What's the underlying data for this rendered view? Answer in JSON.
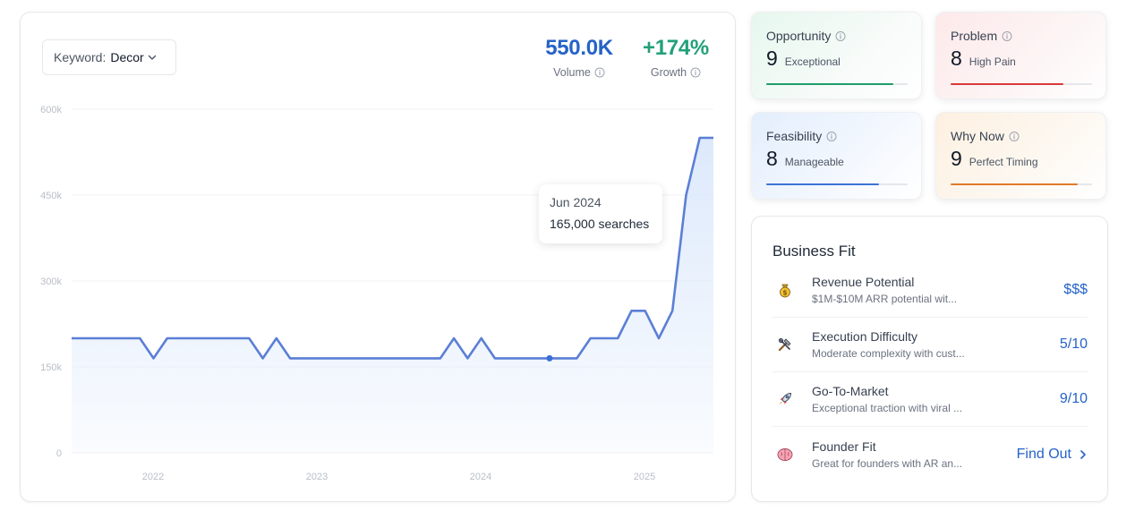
{
  "keyword": {
    "label": "Keyword:",
    "value": "Decor"
  },
  "metrics": {
    "volume": {
      "value": "550.0K",
      "label": "Volume",
      "color": "#2563c8"
    },
    "growth": {
      "value": "+174%",
      "label": "Growth",
      "color": "#22a07a"
    }
  },
  "tooltip": {
    "date": "Jun 2024",
    "value": "165,000 searches"
  },
  "chart_data": {
    "type": "area",
    "x_ticks": [
      "2022",
      "2023",
      "2024",
      "2025"
    ],
    "y_ticks": [
      "0",
      "150k",
      "300k",
      "450k",
      "600k"
    ],
    "ylim": [
      0,
      600000
    ],
    "grid": true,
    "line_color": "#5b7fd6",
    "fill_color": "#dbe8fb",
    "series": [
      {
        "values": [
          200000,
          200000,
          200000,
          200000,
          200000,
          200000,
          165000,
          200000,
          200000,
          200000,
          200000,
          200000,
          200000,
          200000,
          165000,
          200000,
          165000,
          165000,
          165000,
          165000,
          165000,
          165000,
          165000,
          165000,
          165000,
          165000,
          165000,
          165000,
          200000,
          165000,
          200000,
          165000,
          165000,
          165000,
          165000,
          165000,
          165000,
          165000,
          200000,
          200000,
          200000,
          248000,
          248000,
          200000,
          248000,
          450000,
          550000,
          550000
        ]
      }
    ],
    "highlight_index": 35
  },
  "scores": [
    {
      "title": "Opportunity",
      "score": "9",
      "desc": "Exceptional",
      "fraction": 0.9,
      "color": "#1f9d6b"
    },
    {
      "title": "Problem",
      "score": "8",
      "desc": "High Pain",
      "fraction": 0.8,
      "color": "#d93a3a"
    },
    {
      "title": "Feasibility",
      "score": "8",
      "desc": "Manageable",
      "fraction": 0.8,
      "color": "#3b74d4"
    },
    {
      "title": "Why Now",
      "score": "9",
      "desc": "Perfect Timing",
      "fraction": 0.9,
      "color": "#e07a2a"
    }
  ],
  "business_fit": {
    "title": "Business Fit",
    "rows": [
      {
        "icon": "money-bag-icon",
        "name": "Revenue Potential",
        "desc": "$1M-$10M ARR potential wit...",
        "value": "$$$"
      },
      {
        "icon": "tools-icon",
        "name": "Execution Difficulty",
        "desc": "Moderate complexity with cust...",
        "value": "5/10"
      },
      {
        "icon": "rocket-icon",
        "name": "Go-To-Market",
        "desc": "Exceptional traction with viral ...",
        "value": "9/10"
      },
      {
        "icon": "brain-icon",
        "name": "Founder Fit",
        "desc": "Great for founders with AR an...",
        "value": "Find Out"
      }
    ]
  }
}
